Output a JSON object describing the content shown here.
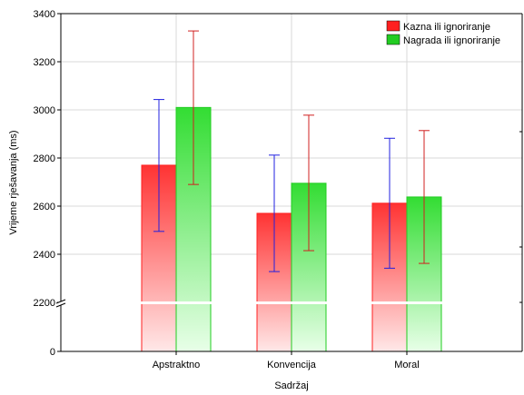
{
  "chart_data": {
    "type": "bar",
    "xlabel": "Sadržaj",
    "ylabel": "Vrijeme rješavanja (ms)",
    "categories": [
      "Apstraktno",
      "Konvencija",
      "Moral"
    ],
    "y_axis_break": true,
    "yticks": [
      0,
      2200,
      2400,
      2600,
      2800,
      3000,
      3200,
      3400
    ],
    "ylim": [
      2200,
      3400
    ],
    "grid": true,
    "legend_position": "top-right",
    "series": [
      {
        "name": "Kazna ili ignoriranje",
        "color": "#ff2020",
        "errorbar_color": "#2020e0",
        "values": [
          2770,
          2570,
          2612
        ],
        "err_low": [
          2495,
          2328,
          2342
        ],
        "err_high": [
          3043,
          2812,
          2882
        ]
      },
      {
        "name": "Nagrada ili ignoriranje",
        "color": "#22cc22",
        "errorbar_color": "#d02020",
        "values": [
          3010,
          2695,
          2638
        ],
        "err_low": [
          2690,
          2415,
          2362
        ],
        "err_high": [
          3328,
          2978,
          2914
        ]
      }
    ]
  }
}
